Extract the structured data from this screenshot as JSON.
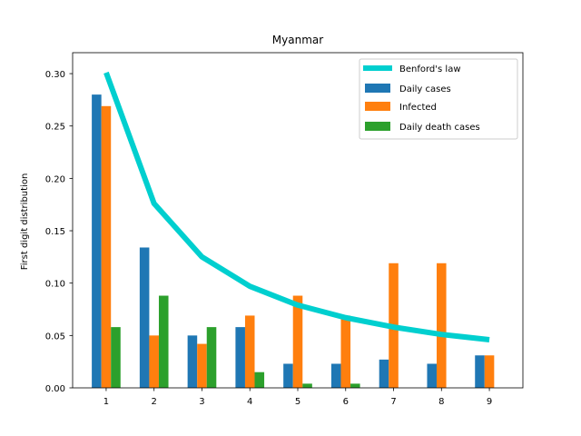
{
  "chart_data": {
    "type": "bar",
    "title": "Myanmar",
    "xlabel": "",
    "ylabel": "First digit distribution",
    "categories": [
      "1",
      "2",
      "3",
      "4",
      "5",
      "6",
      "7",
      "8",
      "9"
    ],
    "ylim": [
      0,
      0.32
    ],
    "yticks": [
      "0.00",
      "0.05",
      "0.10",
      "0.15",
      "0.20",
      "0.25",
      "0.30"
    ],
    "legend_position": "top-right",
    "line_series": {
      "name": "Benford's law",
      "color": "#00cfcf",
      "values": [
        0.301,
        0.176,
        0.125,
        0.097,
        0.079,
        0.067,
        0.058,
        0.051,
        0.046
      ]
    },
    "series": [
      {
        "name": "Daily cases",
        "color": "#1f77b4",
        "values": [
          0.28,
          0.134,
          0.05,
          0.058,
          0.023,
          0.023,
          0.027,
          0.023,
          0.031
        ]
      },
      {
        "name": "Infected",
        "color": "#ff7f0e",
        "values": [
          0.269,
          0.05,
          0.042,
          0.069,
          0.088,
          0.069,
          0.119,
          0.119,
          0.031
        ]
      },
      {
        "name": "Daily death cases",
        "color": "#2ca02c",
        "values": [
          0.058,
          0.088,
          0.058,
          0.015,
          0.004,
          0.004,
          0.0,
          0.0,
          0.0
        ]
      }
    ]
  }
}
